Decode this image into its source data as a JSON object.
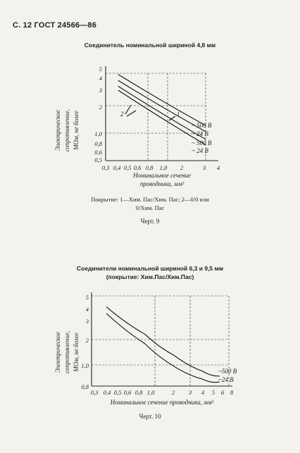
{
  "page": {
    "header": "С. 12 ГОСТ 24566—86",
    "figure1": {
      "caption": "Соединитель номинальной шириной 4,8 мм",
      "y_axis_label_lines": [
        "Электрическое",
        "сопротивление,",
        "МОм, не более"
      ],
      "x_axis_label_lines": [
        "Номинальное сечение",
        "проводника, мм²"
      ],
      "curve_labels": [
        "1",
        "2"
      ],
      "end_labels": [
        "~ 500 В",
        "~ 24 В",
        "~ 500 В",
        "~ 24 В"
      ],
      "note_line1": "Покрытие: 1—Хим. Пас/Хим. Пас; 2—0/0 или",
      "note_line2": "0/Хим. Пас",
      "figure_label": "Черт. 9"
    },
    "figure2": {
      "caption_line1": "Соединители номинальной шириной 6,3 и 9,5 мм",
      "caption_line2": "(покрытие: Хим.Пас/Хим.Пас)",
      "y_axis_label_lines": [
        "Электрическое",
        "сопротивление,",
        "МОм, не более"
      ],
      "x_axis_label": "Номинальное сечение проводника, мм²",
      "end_labels": [
        "~500 В",
        "~24 В"
      ],
      "figure_label": "Черт. 10"
    }
  },
  "chart_data": [
    {
      "type": "line",
      "title": "Соединитель номинальной шириной 4,8 мм",
      "xlabel": "Номинальное сечение проводника, мм²",
      "ylabel": "Электрическое сопротивление, МОм, не более",
      "x_scale": "log",
      "y_scale": "log",
      "x_ticks": [
        "0,3",
        "0,4",
        "0,5",
        "0,6",
        "0,8",
        "1,0",
        "2",
        "3",
        "4"
      ],
      "y_ticks": [
        "0,5",
        "0,6",
        "0,8",
        "1,0",
        "2",
        "3",
        "4",
        "5"
      ],
      "xlim": [
        0.3,
        4
      ],
      "ylim": [
        0.5,
        5
      ],
      "series": [
        {
          "name": "~ 500 В",
          "x": [
            0.4,
            3
          ],
          "y": [
            4.3,
            1.2
          ]
        },
        {
          "name": "~ 24 В",
          "x": [
            0.4,
            3
          ],
          "y": [
            3.7,
            1.03
          ]
        },
        {
          "name": "~ 500 В",
          "x": [
            0.4,
            3
          ],
          "y": [
            3.2,
            0.85
          ]
        },
        {
          "name": "~ 24 В",
          "x": [
            0.4,
            3
          ],
          "y": [
            2.9,
            0.74
          ]
        }
      ]
    },
    {
      "type": "line",
      "title": "Соединители номинальной шириной 6,3 и 9,5 мм (покрытие: Хим.Пас/Хим.Пас)",
      "xlabel": "Номинальное сечение проводника, мм²",
      "ylabel": "Электрическое сопротивление, МОм, не более",
      "x_scale": "log",
      "y_scale": "log",
      "x_ticks": [
        "0,3",
        "0,4",
        "0,5",
        "0,6",
        "0,8",
        "1,0",
        "2",
        "3",
        "4",
        "5",
        "6",
        "8"
      ],
      "y_ticks": [
        "0,8",
        "1,0",
        "2",
        "3",
        "4",
        "5"
      ],
      "xlim": [
        0.3,
        8
      ],
      "ylim": [
        0.8,
        5
      ],
      "series": [
        {
          "name": "~500 В",
          "x": [
            0.4,
            1,
            2,
            4,
            6
          ],
          "y": [
            4,
            2.3,
            1.5,
            1.08,
            0.98
          ]
        },
        {
          "name": "~24 В",
          "x": [
            0.4,
            1,
            2,
            4,
            6
          ],
          "y": [
            3.5,
            1.9,
            1.2,
            0.92,
            0.87
          ]
        }
      ]
    }
  ]
}
